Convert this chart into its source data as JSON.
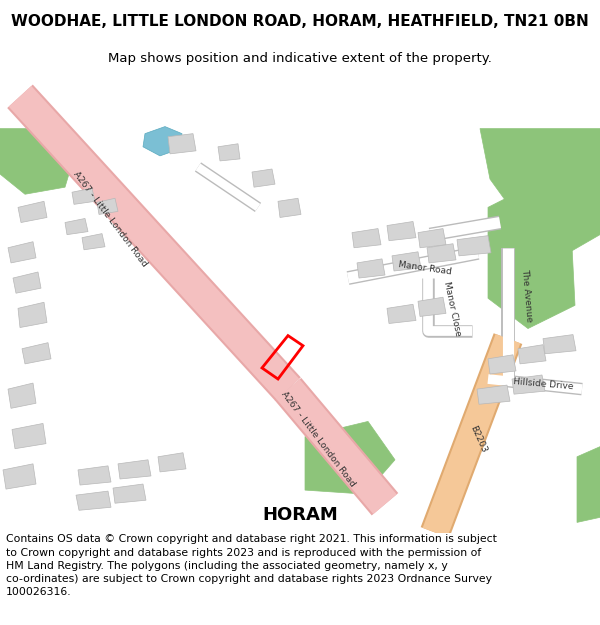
{
  "title": "WOODHAE, LITTLE LONDON ROAD, HORAM, HEATHFIELD, TN21 0BN",
  "subtitle": "Map shows position and indicative extent of the property.",
  "footer": "Contains OS data © Crown copyright and database right 2021. This information is subject\nto Crown copyright and database rights 2023 and is reproduced with the permission of\nHM Land Registry. The polygons (including the associated geometry, namely x, y\nco-ordinates) are subject to Crown copyright and database rights 2023 Ordnance Survey\n100026316.",
  "map_bg": "#ffffff",
  "road_a_color": "#f4c0c0",
  "road_a_border": "#e8a8a8",
  "road_b_color": "#f5c898",
  "road_b_border": "#e0aa70",
  "green_color": "#8dc47a",
  "blue_color": "#7bbfd4",
  "building_color": "#d4d4d4",
  "building_border": "#b8b8b8",
  "plot_color": "#ff0000",
  "text_road": "#444444",
  "title_size": 11,
  "subtitle_size": 9.5,
  "footer_size": 7.8
}
